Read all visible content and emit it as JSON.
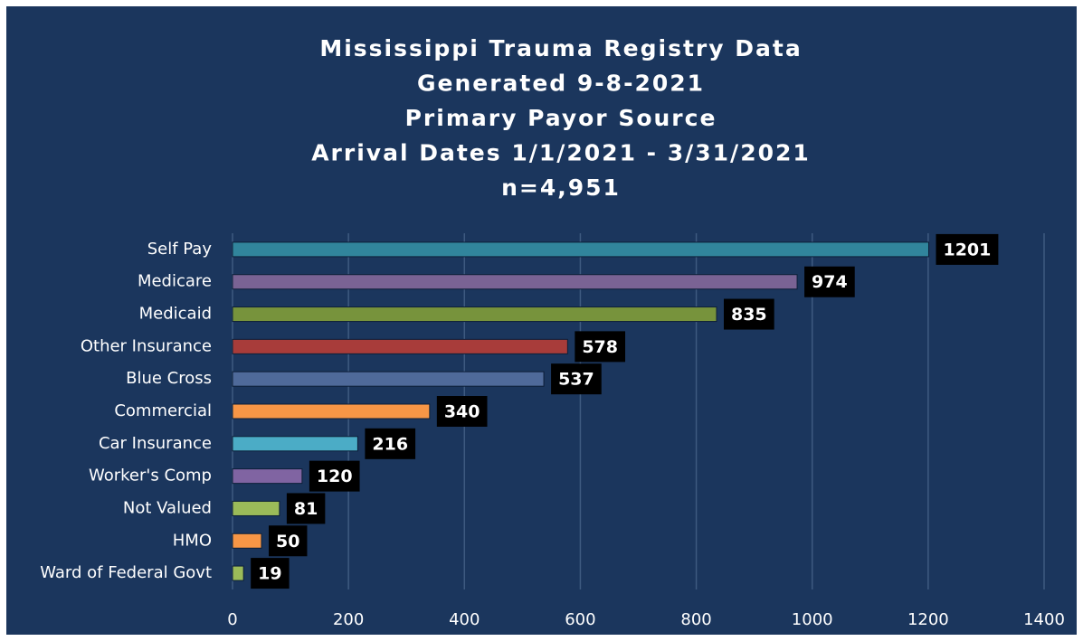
{
  "chart_data": {
    "type": "hbar",
    "title": [
      "Mississippi Trauma Registry Data",
      "Generated 9-8-2021",
      "Primary Payor Source",
      "Arrival Dates 1/1/2021 - 3/31/2021",
      "n=4,951"
    ],
    "categories": [
      "Self Pay",
      "Medicare",
      "Medicaid",
      "Other Insurance",
      "Blue Cross",
      "Commercial",
      "Car Insurance",
      "Worker's Comp",
      "Not Valued",
      "HMO",
      "Ward of Federal Govt"
    ],
    "values": [
      1201,
      974,
      835,
      578,
      537,
      340,
      216,
      120,
      81,
      50,
      19
    ],
    "colors": [
      "#31859c",
      "#7a6394",
      "#77933c",
      "#a83c3a",
      "#4f6a9a",
      "#f79646",
      "#4bacc6",
      "#8064a2",
      "#9bbb59",
      "#f79646",
      "#9bbb59"
    ],
    "xlim": [
      0,
      1400
    ],
    "xticks": [
      0,
      200,
      400,
      600,
      800,
      1000,
      1200,
      1400
    ],
    "grid": true
  }
}
